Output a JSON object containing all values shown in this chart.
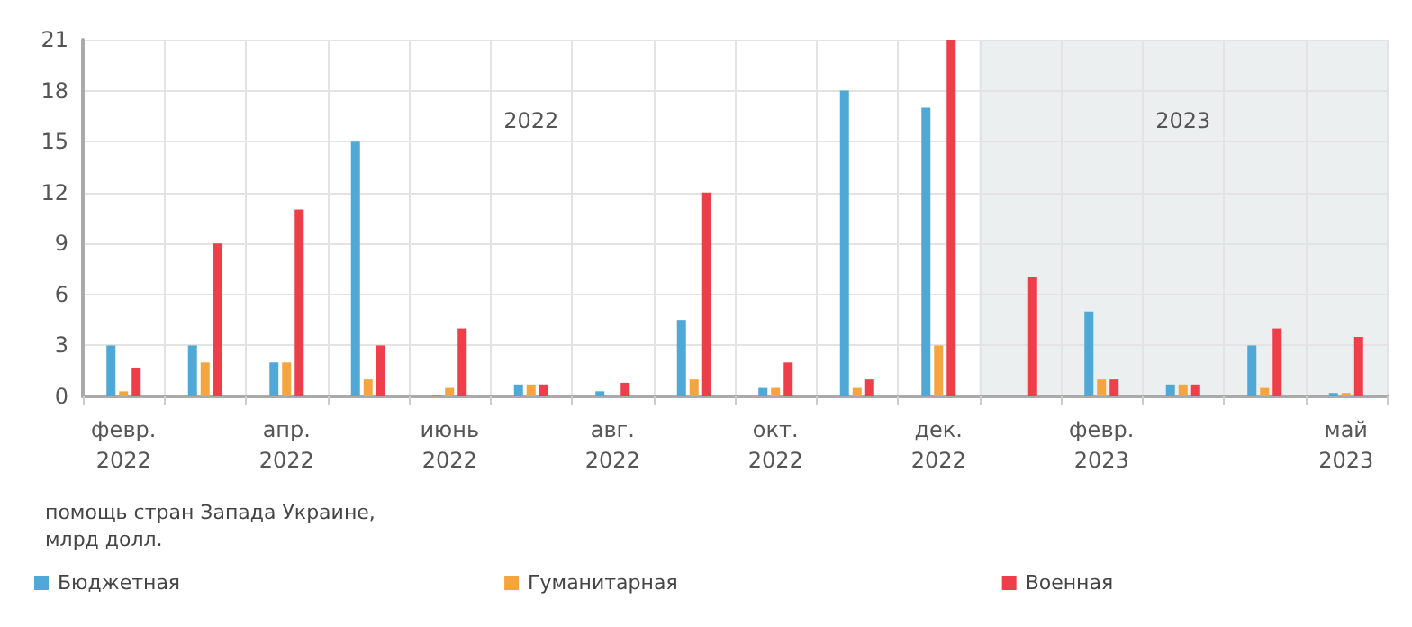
{
  "chart_data": {
    "type": "bar",
    "title": "помощь стран Запада Украине,\nмлрд долл.",
    "categories": [
      "февр.\n2022",
      null,
      "апр.\n2022",
      null,
      "июнь\n2022",
      null,
      "авг.\n2022",
      null,
      "окт.\n2022",
      null,
      "дек.\n2022",
      null,
      "февр.\n2023",
      null,
      null,
      "май\n2023"
    ],
    "series": [
      {
        "name": "Бюджетная",
        "color": "#4fa8d5",
        "values": [
          3,
          3,
          2,
          15,
          0.1,
          0.7,
          0.3,
          4.5,
          0.5,
          18,
          17,
          0,
          5,
          0.7,
          3,
          0.2
        ]
      },
      {
        "name": "Гуманитарная",
        "color": "#f5a540",
        "values": [
          0.3,
          2,
          2,
          1,
          0.5,
          0.7,
          0,
          1,
          0.5,
          0.5,
          3,
          0,
          1,
          0.7,
          0.5,
          0.2
        ]
      },
      {
        "name": "Военная",
        "color": "#ee3e4a",
        "values": [
          1.7,
          9,
          11,
          3,
          4,
          0.7,
          0.8,
          12,
          2,
          1,
          21,
          7,
          1,
          0.7,
          4,
          3.5
        ]
      }
    ],
    "ylim": [
      0,
      21
    ],
    "yticks": [
      0,
      3,
      6,
      9,
      12,
      15,
      18,
      21
    ],
    "grid": true,
    "legend": "bottom",
    "annotations": [
      "2022",
      "2023"
    ]
  }
}
